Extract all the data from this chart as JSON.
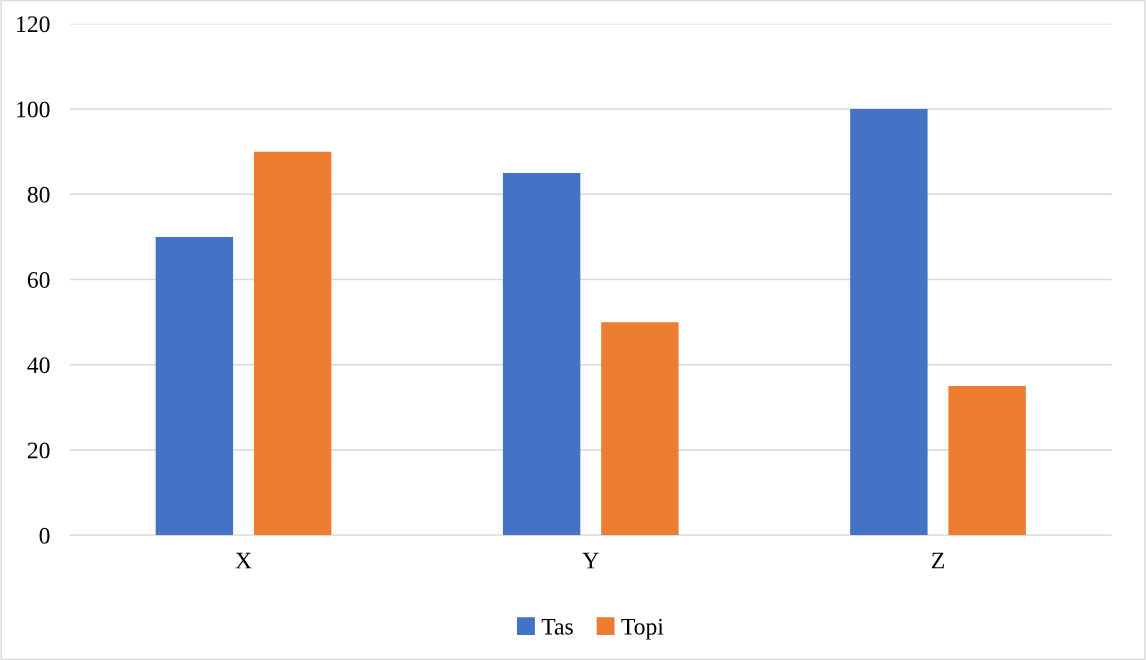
{
  "chart_data": {
    "type": "bar",
    "categories": [
      "X",
      "Y",
      "Z"
    ],
    "series": [
      {
        "name": "Tas",
        "color": "#4472c4",
        "values": [
          70,
          85,
          100
        ]
      },
      {
        "name": "Topi",
        "color": "#ed7d31",
        "values": [
          90,
          50,
          35
        ]
      }
    ],
    "ylim": [
      0,
      120
    ],
    "yticks": [
      0,
      20,
      40,
      60,
      80,
      100,
      120
    ],
    "grid": "y",
    "legend": "bottom"
  }
}
